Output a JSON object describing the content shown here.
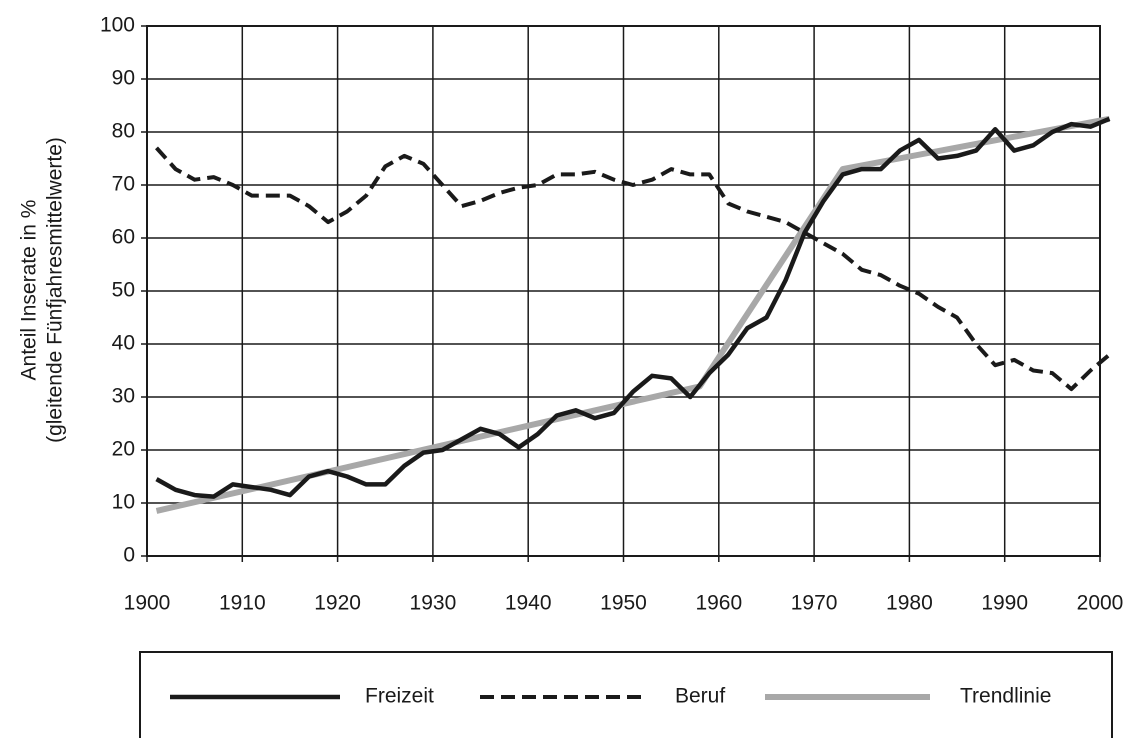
{
  "chart_data": {
    "type": "line",
    "y_label_lines": [
      "Anteil Inserate in %",
      "(gleitende Fünfjahresmittelwerte)"
    ],
    "x": [
      1901,
      1903,
      1905,
      1907,
      1909,
      1911,
      1913,
      1915,
      1917,
      1919,
      1921,
      1923,
      1925,
      1927,
      1929,
      1931,
      1933,
      1935,
      1937,
      1939,
      1941,
      1943,
      1945,
      1947,
      1949,
      1951,
      1953,
      1955,
      1957,
      1959,
      1961,
      1963,
      1965,
      1967,
      1969,
      1971,
      1973,
      1975,
      1977,
      1979,
      1981,
      1983,
      1985,
      1987,
      1989,
      1991,
      1993,
      1995,
      1997,
      1999,
      2001
    ],
    "series": [
      {
        "name": "Freizeit",
        "color": "#1a1a1a",
        "style": "solid",
        "values": [
          14.5,
          12.5,
          11.5,
          11.2,
          13.5,
          13,
          12.5,
          11.5,
          15,
          16,
          15,
          13.5,
          13.5,
          17,
          19.5,
          20,
          22,
          24,
          23,
          20.5,
          23,
          26.5,
          27.5,
          26,
          27,
          31,
          34,
          33.5,
          30,
          34.5,
          38,
          43,
          45,
          52,
          61,
          67,
          72,
          73,
          73,
          76.5,
          78.5,
          75,
          75.5,
          76.5,
          80.5,
          76.5,
          77.5,
          80,
          81.5,
          81,
          82.5
        ]
      },
      {
        "name": "Beruf",
        "color": "#1a1a1a",
        "style": "dashed",
        "values": [
          77,
          73,
          71,
          71.5,
          70,
          68,
          68,
          68,
          66,
          63,
          65,
          68,
          73.5,
          75.5,
          74,
          70,
          66,
          67,
          68.5,
          69.5,
          70,
          72,
          72,
          72.5,
          71,
          70,
          71,
          73,
          72,
          72,
          66.5,
          65,
          64,
          63,
          61,
          59,
          57,
          54,
          53,
          51,
          49.5,
          47,
          45,
          40,
          36,
          37,
          35,
          34.5,
          31.5,
          35,
          38
        ]
      },
      {
        "name": "Trendlinie",
        "color": "#a8a8a8",
        "style": "solid",
        "x": [
          1901,
          1958,
          1973,
          2001
        ],
        "values": [
          8.5,
          32,
          73,
          82.5
        ]
      }
    ],
    "xlim": [
      1900,
      2000
    ],
    "xticks": [
      1900,
      1910,
      1920,
      1930,
      1940,
      1950,
      1960,
      1970,
      1980,
      1990,
      2000
    ],
    "ylim": [
      0,
      100
    ],
    "yticks": [
      0,
      10,
      20,
      30,
      40,
      50,
      60,
      70,
      80,
      90,
      100
    ],
    "grid": true
  }
}
